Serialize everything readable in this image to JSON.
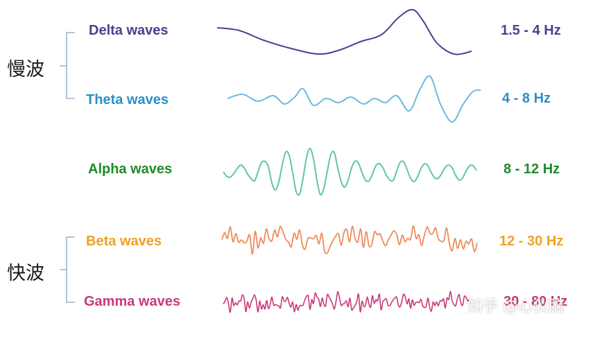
{
  "groups": [
    {
      "label": "慢波",
      "waves": [
        0,
        1
      ]
    },
    {
      "label": "快波",
      "waves": [
        3,
        4
      ]
    }
  ],
  "waves": [
    {
      "name": "Delta waves",
      "freq": "1.5 - 4 Hz",
      "color": "#4b3f8f",
      "wave_color": "#4b3f8f"
    },
    {
      "name": "Theta waves",
      "freq": "4 - 8 Hz",
      "color": "#2b8fc7",
      "wave_color": "#6fb8dd"
    },
    {
      "name": "Alpha waves",
      "freq": "8 - 12 Hz",
      "color": "#1f8a2a",
      "wave_color": "#5ec6a6"
    },
    {
      "name": "Beta waves",
      "freq": "12 - 30 Hz",
      "color": "#f0a024",
      "wave_color": "#ee8a5a"
    },
    {
      "name": "Gamma waves",
      "freq": "30 - 80 Hz",
      "color": "#c8397a",
      "wave_color": "#c8397a"
    }
  ],
  "watermark": "知乎 @心仪脑"
}
